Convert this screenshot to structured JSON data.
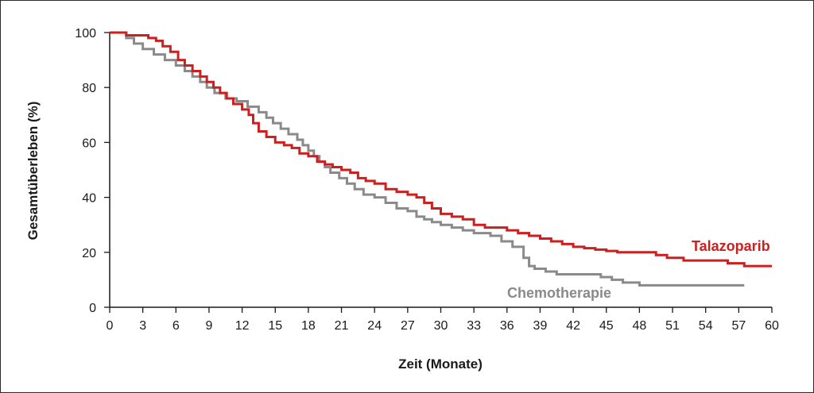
{
  "chart_data": {
    "type": "line",
    "step": true,
    "title": "",
    "xlabel": "Zeit (Monate)",
    "ylabel": "Gesamtüberleben (%)",
    "xlim": [
      0,
      60
    ],
    "ylim": [
      0,
      100
    ],
    "xticks": [
      "0",
      "3",
      "6",
      "9",
      "12",
      "15",
      "18",
      "21",
      "24",
      "27",
      "30",
      "33",
      "36",
      "39",
      "42",
      "45",
      "48",
      "51",
      "54",
      "57",
      "60"
    ],
    "yticks": [
      "0",
      "20",
      "40",
      "60",
      "80",
      "100"
    ],
    "grid": false,
    "series": [
      {
        "name": "Talazoparib",
        "color": "#cc1f1f",
        "x": [
          0,
          1.5,
          2.5,
          3.5,
          4.2,
          4.8,
          5.5,
          6.2,
          6.8,
          7.5,
          8.2,
          8.8,
          9.4,
          10.0,
          10.6,
          11.2,
          12.0,
          12.6,
          13.0,
          13.5,
          14.2,
          15.0,
          15.8,
          16.5,
          17.2,
          18.0,
          18.8,
          19.5,
          20.2,
          21.0,
          21.8,
          22.5,
          23.2,
          24.0,
          25.0,
          26.0,
          27.0,
          27.8,
          28.5,
          29.2,
          30.0,
          31.0,
          32.0,
          33.0,
          34.0,
          35.0,
          36.0,
          37.0,
          38.0,
          39.0,
          40.0,
          41.0,
          42.0,
          43.0,
          44.0,
          45.0,
          46.0,
          48.0,
          49.5,
          50.5,
          52.0,
          54.0,
          56.0,
          57.5,
          60.0
        ],
        "y": [
          100,
          99,
          99,
          98,
          97,
          95,
          93,
          90,
          88,
          86,
          84,
          82,
          80,
          78,
          76,
          74,
          72,
          70,
          67,
          64,
          62,
          60,
          59,
          58,
          56,
          55,
          53,
          52,
          51,
          50,
          49,
          47,
          46,
          45,
          43,
          42,
          41,
          40,
          38,
          36,
          34,
          33,
          32,
          30,
          29,
          29,
          28,
          27,
          26,
          25,
          24,
          23,
          22,
          21.5,
          21,
          20.5,
          20,
          20,
          19,
          18,
          17,
          17,
          16,
          15,
          15
        ]
      },
      {
        "name": "Chemotherapie",
        "color": "#8a8a8a",
        "x": [
          0,
          1.5,
          2.2,
          3.0,
          4.0,
          5.0,
          6.0,
          6.8,
          7.5,
          8.2,
          8.8,
          9.5,
          10.5,
          11.5,
          12.5,
          13.5,
          14.2,
          14.8,
          15.5,
          16.2,
          17.0,
          17.5,
          18.0,
          18.5,
          19.0,
          19.5,
          20.0,
          20.8,
          21.5,
          22.2,
          23.0,
          24.0,
          25.0,
          26.0,
          27.0,
          27.8,
          28.5,
          29.2,
          30.0,
          31.0,
          32.0,
          33.0,
          34.5,
          35.5,
          36.5,
          37.5,
          38.0,
          38.5,
          39.5,
          40.5,
          41.5,
          42.5,
          43.5,
          44.5,
          45.5,
          46.5,
          48.0,
          50.0,
          52.0,
          55.0,
          57.5
        ],
        "y": [
          100,
          98,
          96,
          94,
          92,
          90,
          88,
          86,
          84,
          82,
          80,
          78,
          76,
          75,
          73,
          71,
          69,
          67,
          65,
          63,
          61,
          59,
          57,
          55,
          53,
          51,
          49,
          47,
          45,
          43,
          41,
          40,
          38,
          36,
          35,
          33,
          32,
          31,
          30,
          29,
          28,
          27,
          26,
          24,
          22,
          18,
          15,
          14,
          13,
          12,
          12,
          12,
          12,
          11,
          10,
          9,
          8,
          8,
          8,
          8,
          8
        ]
      }
    ],
    "annotations": [
      {
        "text": "Talazoparib",
        "series": "Talazoparib"
      },
      {
        "text": "Chemotherapie",
        "series": "Chemotherapie"
      }
    ]
  }
}
